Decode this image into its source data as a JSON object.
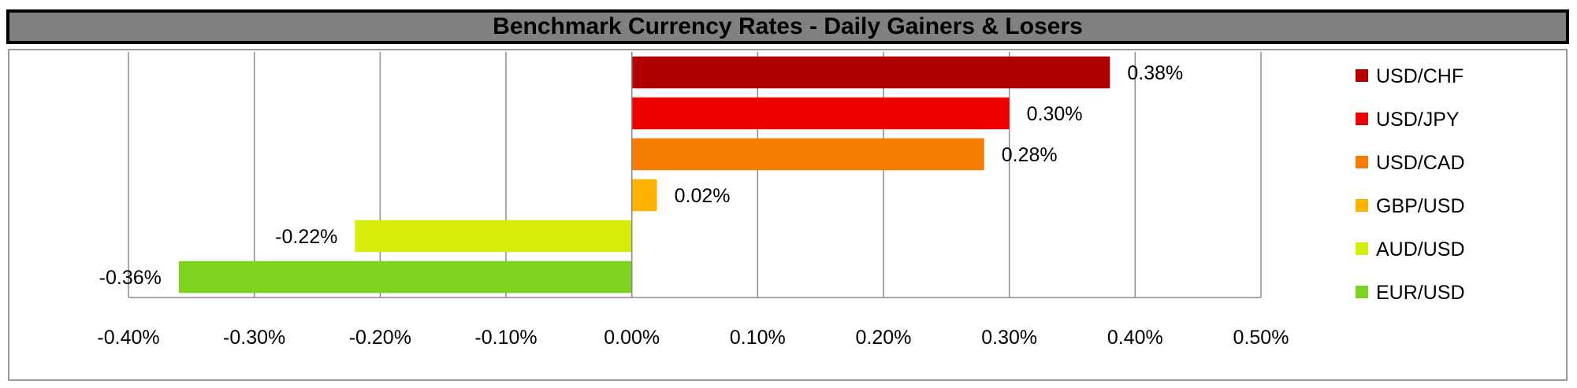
{
  "chart_data": {
    "type": "bar",
    "orientation": "horizontal",
    "title": "Benchmark Currency Rates - Daily Gainers & Losers",
    "xlim": [
      -0.4,
      0.5
    ],
    "x_tick_labels": [
      "-0.40%",
      "-0.30%",
      "-0.20%",
      "-0.10%",
      "0.00%",
      "0.10%",
      "0.20%",
      "0.30%",
      "0.40%",
      "0.50%"
    ],
    "grid": "vertical",
    "legend_position": "right",
    "bars": [
      {
        "name": "USD/CHF",
        "value": 0.38,
        "label": "0.38%",
        "color": "#b00000"
      },
      {
        "name": "USD/JPY",
        "value": 0.3,
        "label": "0.30%",
        "color": "#ee0000"
      },
      {
        "name": "USD/CAD",
        "value": 0.28,
        "label": "0.28%",
        "color": "#f57c00"
      },
      {
        "name": "GBP/USD",
        "value": 0.02,
        "label": "0.02%",
        "color": "#ffb300"
      },
      {
        "name": "AUD/USD",
        "value": -0.22,
        "label": "-0.22%",
        "color": "#d8ec0c"
      },
      {
        "name": "EUR/USD",
        "value": -0.36,
        "label": "-0.36%",
        "color": "#7ed321"
      }
    ]
  }
}
